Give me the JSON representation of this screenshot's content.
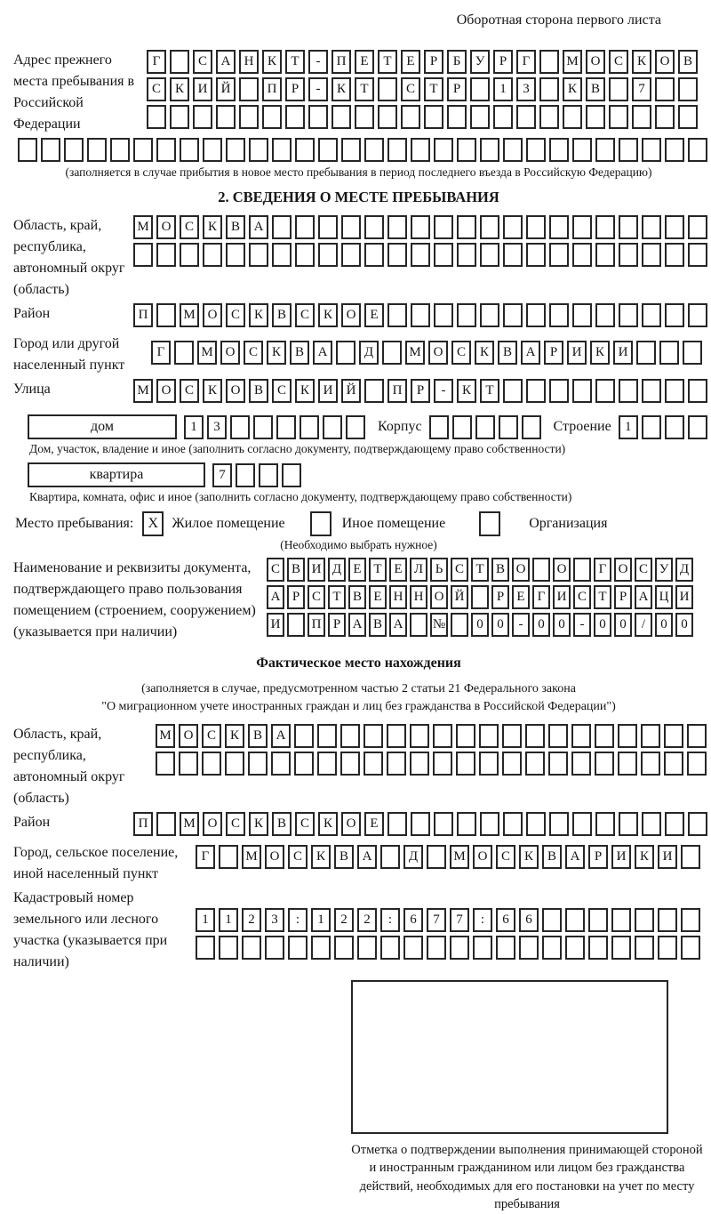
{
  "page": {
    "header_note": "Оборотная сторона первого листа"
  },
  "prev_address": {
    "label": "Адрес прежнего места пребывания в Российской Федерации",
    "rows": [
      {
        "text": "Г САНКТ-ПЕТЕРБУРГ МОСКОВ",
        "len": 24
      },
      {
        "text": "СКИЙ ПР-КТ СТР 13 КВ 7",
        "len": 24
      },
      {
        "text": "",
        "len": 24
      }
    ],
    "overflow_row": {
      "text": "",
      "len": 30
    },
    "note": "(заполняется в случае прибытия в новое место пребывания в период последнего въезда в Российскую Федерацию)"
  },
  "section2": {
    "title": "2. СВЕДЕНИЯ О МЕСТЕ ПРЕБЫВАНИЯ",
    "region": {
      "label": "Область, край, республика, автономный округ (область)",
      "rows": [
        {
          "text": "МОСКВА",
          "len": 25
        },
        {
          "text": "",
          "len": 25
        }
      ]
    },
    "district": {
      "label": "Район",
      "row": {
        "text": "П МОСКВСКОЕ",
        "len": 25
      }
    },
    "city": {
      "label": "Город или другой населенный пункт",
      "row": {
        "text": "Г МОСКВА Д МОСКВАРИКИ",
        "len": 24
      }
    },
    "street": {
      "label": "Улица",
      "row": {
        "text": "МОСКОВСКИЙ ПР-КТ",
        "len": 25
      }
    },
    "house": {
      "box_label": "дом",
      "cells": {
        "text": "13",
        "len": 8
      },
      "korpus_label": "Корпус",
      "korpus_cells": {
        "text": "",
        "len": 5
      },
      "stroenie_label": "Строение",
      "stroenie_cells": {
        "text": "1",
        "len": 4
      }
    },
    "house_note": "Дом, участок, владение и иное (заполнить согласно документу, подтверждающему право собственности)",
    "apartment": {
      "box_label": "квартира",
      "cells": {
        "text": "7",
        "len": 4
      }
    },
    "apartment_note": "Квартира, комната, офис и иное (заполнить согласно документу, подтверждающему право собственности)",
    "stay": {
      "label": "Место пребывания:",
      "options": [
        {
          "mark": "X",
          "label": "Жилое помещение"
        },
        {
          "mark": "",
          "label": "Иное помещение"
        },
        {
          "mark": "",
          "label": "Организация"
        }
      ],
      "note": "(Необходимо выбрать нужное)"
    },
    "doc": {
      "label": "Наименование и реквизиты документа, подтверждающего право пользования помещением (строением, сооружением) (указывается при наличии)",
      "rows": [
        {
          "text": "СВИДЕТЕЛЬСТВО О ГОСУД",
          "len": 21
        },
        {
          "text": "АРСТВЕННОЙ РЕГИСТРАЦИ",
          "len": 21
        },
        {
          "text": "И ПРАВА № 00-00-00/000",
          "len": 21
        }
      ]
    }
  },
  "actual_location": {
    "title": "Фактическое место нахождения",
    "law_note_line1": "(заполняется в случае, предусмотренном частью 2 статьи 21 Федерального закона",
    "law_note_line2": "\"О миграционном учете иностранных граждан и лиц без гражданства в Российской Федерации\")",
    "region": {
      "label": "Область, край, республика, автономный округ (область)",
      "rows": [
        {
          "text": "МОСКВА",
          "len": 24
        },
        {
          "text": "",
          "len": 24
        }
      ]
    },
    "district": {
      "label": "Район",
      "row": {
        "text": "П МОСКВСКОЕ",
        "len": 25
      }
    },
    "city": {
      "label": "Город, сельское поселение, иной населенный пункт",
      "row": {
        "text": "Г МОСКВА Д МОСКВАРИКИ",
        "len": 22
      }
    },
    "cadastral": {
      "label": "Кадастровый номер земельного или лесного участка (указывается при наличии)",
      "rows": [
        {
          "text": "1123:122:677:66",
          "len": 22
        },
        {
          "text": "",
          "len": 22
        }
      ]
    },
    "stamp_note": "Отметка о подтверждении выполнения принимающей стороной и иностранным гражданином или лицом без гражданства действий, необходимых для его постановки на учет по месту пребывания"
  }
}
